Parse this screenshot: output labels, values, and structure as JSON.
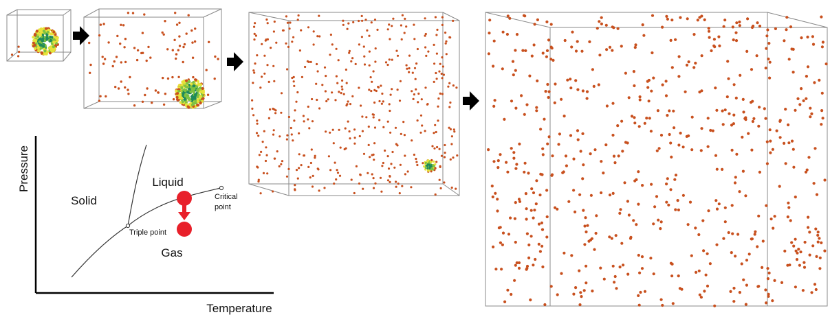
{
  "phase_diagram": {
    "axis_x_label": "Temperature",
    "axis_y_label": "Pressure",
    "regions": {
      "solid": "Solid",
      "liquid": "Liquid",
      "gas": "Gas"
    },
    "points": {
      "triple": "Triple point",
      "critical_line1": "Critical",
      "critical_line2": "point"
    },
    "marker_color": "#e8202a"
  },
  "simulation": {
    "boxes": 4,
    "particle_color": "#c8501e",
    "cluster_colors": [
      "#1f8a5a",
      "#7fc241",
      "#e7e23a",
      "#c8501e"
    ],
    "arrow_color": "#000000"
  }
}
